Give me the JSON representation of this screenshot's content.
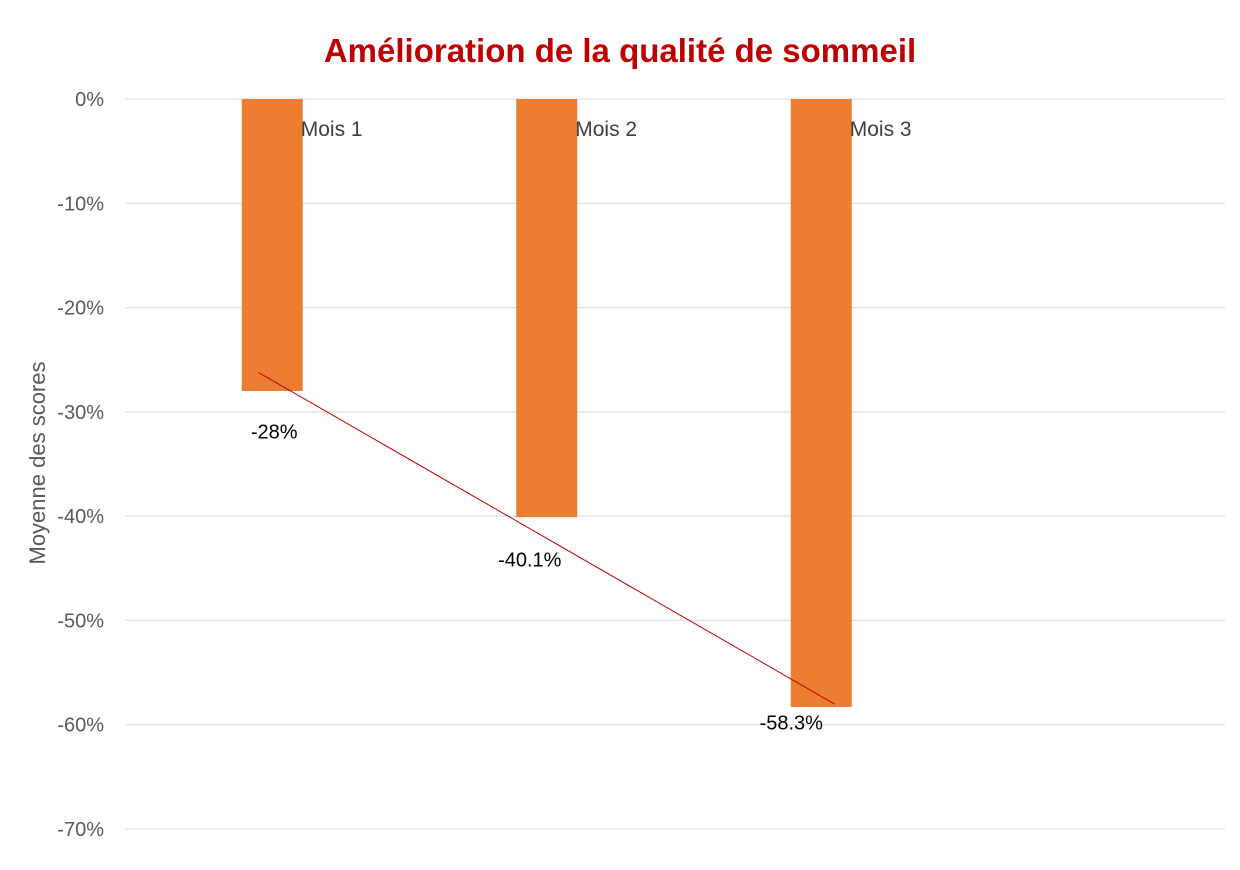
{
  "chart_data": {
    "type": "bar",
    "title": "Amélioration de la qualité de sommeil",
    "xlabel": "",
    "ylabel": "Moyenne des scores",
    "categories": [
      "Mois 1",
      "Mois 2",
      "Mois 3"
    ],
    "values": [
      -28,
      -40.1,
      -58.3
    ],
    "data_labels": [
      "-28%",
      "-40.1%",
      "-58.3%"
    ],
    "ylim": [
      -70,
      0
    ],
    "yticks": [
      0,
      -10,
      -20,
      -30,
      -40,
      -50,
      -60,
      -70
    ],
    "ytick_labels": [
      "0%",
      "-10%",
      "-20%",
      "-30%",
      "-40%",
      "-50%",
      "-60%",
      "-70%"
    ],
    "grid": true,
    "trendline": true,
    "legend": "none"
  },
  "colors": {
    "title": "#c00000",
    "bar": "#ed7d31",
    "trendline": "#c00000",
    "grid": "#d9d9d9",
    "axis_text": "#595959"
  }
}
